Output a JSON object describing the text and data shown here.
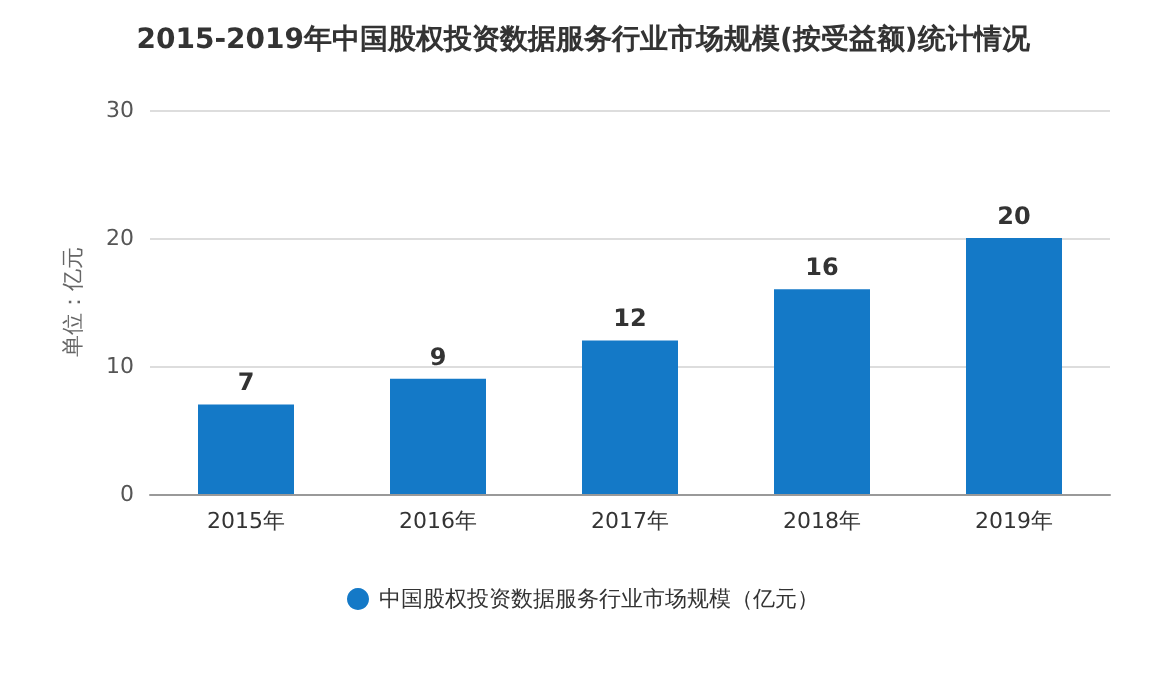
{
  "chart_data": {
    "type": "bar",
    "title": "2015-2019年中国股权投资数据服务行业市场规模(按受益额)统计情况",
    "ylabel": "单位：亿元",
    "categories": [
      "2015年",
      "2016年",
      "2017年",
      "2018年",
      "2019年"
    ],
    "series": [
      {
        "name": "中国股权投资数据服务行业市场规模（亿元）",
        "color": "#1479c7",
        "values": [
          7,
          9,
          12,
          16,
          20
        ]
      }
    ],
    "ylim": [
      0,
      30
    ],
    "yticks": [
      0,
      10,
      20,
      30
    ],
    "grid": "y",
    "legend": "bottom",
    "data_labels": true
  }
}
